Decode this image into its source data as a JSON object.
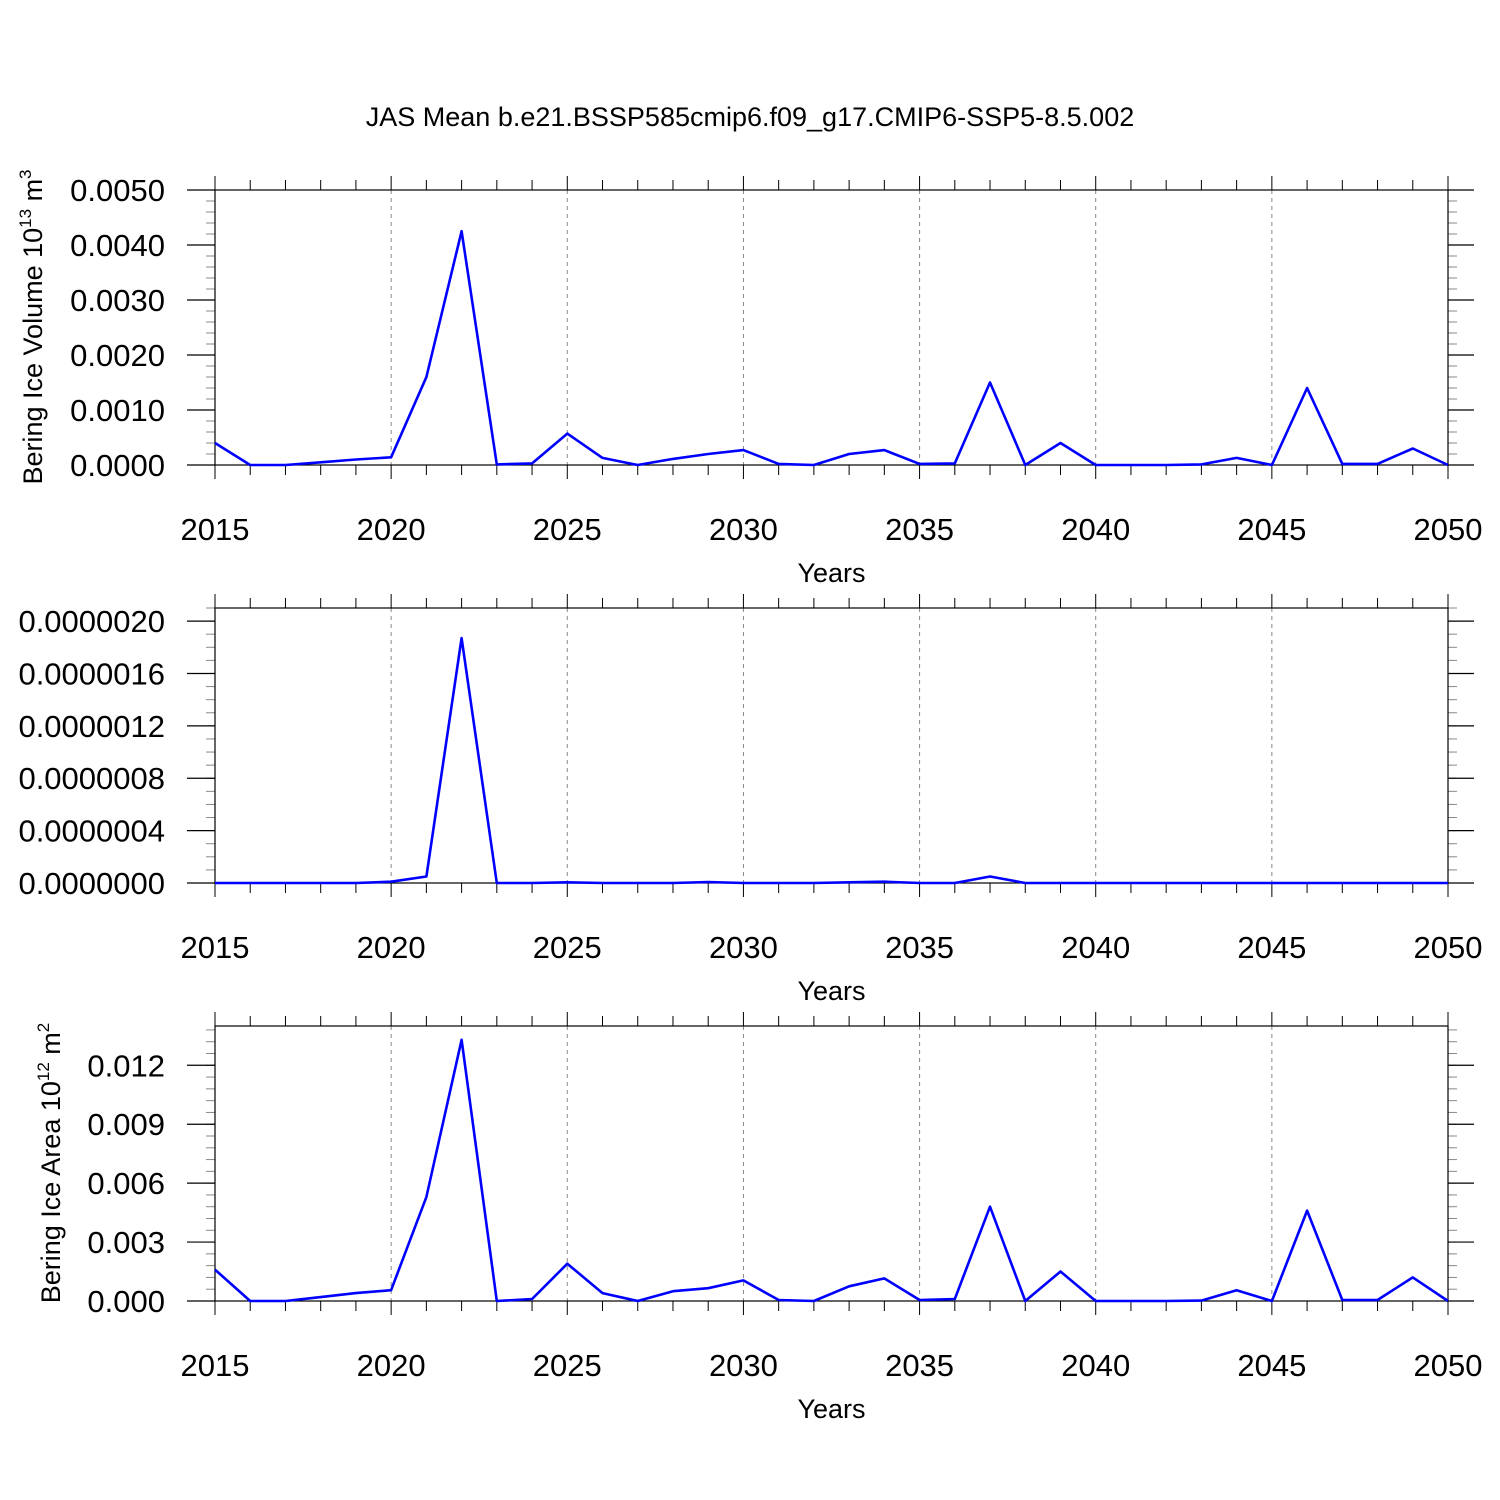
{
  "title": "JAS Mean b.e21.BSSP585cmip6.f09_g17.CMIP6-SSP5-8.5.002",
  "line_color": "#0000ff",
  "chart_data": [
    {
      "type": "line",
      "title": "JAS Mean b.e21.BSSP585cmip6.f09_g17.CMIP6-SSP5-8.5.002",
      "xlabel": "Years",
      "ylabel": {
        "main": "Bering Ice Volume 10",
        "exp": "13",
        "unit": " m",
        "unit_exp": "3"
      },
      "xlim": [
        2015,
        2050
      ],
      "ylim": [
        0,
        0.005
      ],
      "x_ticks": [
        2015,
        2020,
        2025,
        2030,
        2035,
        2040,
        2045,
        2050
      ],
      "y_ticks": [
        0,
        0.001,
        0.002,
        0.003,
        0.004,
        0.005
      ],
      "y_tick_labels": [
        "0.0000",
        "0.0010",
        "0.0020",
        "0.0030",
        "0.0040",
        "0.0050"
      ],
      "y_minor_step": 0.0002,
      "grid": "vertical-dashed",
      "x": [
        2015,
        2016,
        2017,
        2018,
        2019,
        2020,
        2021,
        2022,
        2023,
        2024,
        2025,
        2026,
        2027,
        2028,
        2029,
        2030,
        2031,
        2032,
        2033,
        2034,
        2035,
        2036,
        2037,
        2038,
        2039,
        2040,
        2041,
        2042,
        2043,
        2044,
        2045,
        2046,
        2047,
        2048,
        2049,
        2050
      ],
      "series": [
        {
          "values": [
            0.0004,
            0.0,
            0.0,
            5e-05,
            0.0001,
            0.00014,
            0.0016,
            0.00425,
            1e-05,
            3e-05,
            0.00057,
            0.00013,
            0.0,
            0.00011,
            0.0002,
            0.00027,
            2e-05,
            0.0,
            0.0002,
            0.00027,
            2e-05,
            3e-05,
            0.0015,
            0.0,
            0.0004,
            0.0,
            0.0,
            0.0,
            1e-05,
            0.00013,
            0.0,
            0.0014,
            2e-05,
            2e-05,
            0.0003,
            0.0
          ]
        }
      ]
    },
    {
      "type": "line",
      "xlabel": "Years",
      "xlim": [
        2015,
        2050
      ],
      "ylim": [
        0,
        2.1e-06
      ],
      "x_ticks": [
        2015,
        2020,
        2025,
        2030,
        2035,
        2040,
        2045,
        2050
      ],
      "y_ticks": [
        0,
        4e-07,
        8e-07,
        1.2e-06,
        1.6e-06,
        2e-06
      ],
      "y_tick_labels": [
        "0.0000000",
        "0.0000004",
        "0.0000008",
        "0.0000012",
        "0.0000016",
        "0.0000020"
      ],
      "y_minor_step": 1e-07,
      "grid": "vertical-dashed",
      "x": [
        2015,
        2016,
        2017,
        2018,
        2019,
        2020,
        2021,
        2022,
        2023,
        2024,
        2025,
        2026,
        2027,
        2028,
        2029,
        2030,
        2031,
        2032,
        2033,
        2034,
        2035,
        2036,
        2037,
        2038,
        2039,
        2040,
        2041,
        2042,
        2043,
        2044,
        2045,
        2046,
        2047,
        2048,
        2049,
        2050
      ],
      "series": [
        {
          "values": [
            0.0,
            0.0,
            0.0,
            0.0,
            0.0,
            1e-08,
            5e-08,
            1.87e-06,
            0.0,
            0.0,
            5e-09,
            0.0,
            0.0,
            0.0,
            8e-09,
            0.0,
            0.0,
            0.0,
            5e-09,
            1e-08,
            0.0,
            0.0,
            5e-08,
            0.0,
            0.0,
            0.0,
            0.0,
            0.0,
            0.0,
            0.0,
            0.0,
            0.0,
            0.0,
            0.0,
            0.0,
            0.0
          ]
        }
      ]
    },
    {
      "type": "line",
      "xlabel": "Years",
      "ylabel": {
        "main": "Bering Ice Area 10",
        "exp": "12",
        "unit": " m",
        "unit_exp": "2"
      },
      "xlim": [
        2015,
        2050
      ],
      "ylim": [
        0,
        0.014
      ],
      "x_ticks": [
        2015,
        2020,
        2025,
        2030,
        2035,
        2040,
        2045,
        2050
      ],
      "y_ticks": [
        0,
        0.003,
        0.006,
        0.009,
        0.012
      ],
      "y_tick_labels": [
        "0.000",
        "0.003",
        "0.006",
        "0.009",
        "0.012"
      ],
      "y_minor_step": 0.0006,
      "grid": "vertical-dashed",
      "x": [
        2015,
        2016,
        2017,
        2018,
        2019,
        2020,
        2021,
        2022,
        2023,
        2024,
        2025,
        2026,
        2027,
        2028,
        2029,
        2030,
        2031,
        2032,
        2033,
        2034,
        2035,
        2036,
        2037,
        2038,
        2039,
        2040,
        2041,
        2042,
        2043,
        2044,
        2045,
        2046,
        2047,
        2048,
        2049,
        2050
      ],
      "series": [
        {
          "values": [
            0.0016,
            0.0,
            0.0,
            0.0002,
            0.0004,
            0.00055,
            0.0053,
            0.0133,
            0.0,
            0.0001,
            0.0019,
            0.0004,
            0.0,
            0.0005,
            0.00065,
            0.00105,
            5e-05,
            0.0,
            0.00075,
            0.00115,
            5e-05,
            0.0001,
            0.0048,
            0.0,
            0.0015,
            0.0,
            0.0,
            0.0,
            2e-05,
            0.00055,
            0.0,
            0.0046,
            5e-05,
            5e-05,
            0.0012,
            0.0
          ]
        }
      ]
    }
  ]
}
